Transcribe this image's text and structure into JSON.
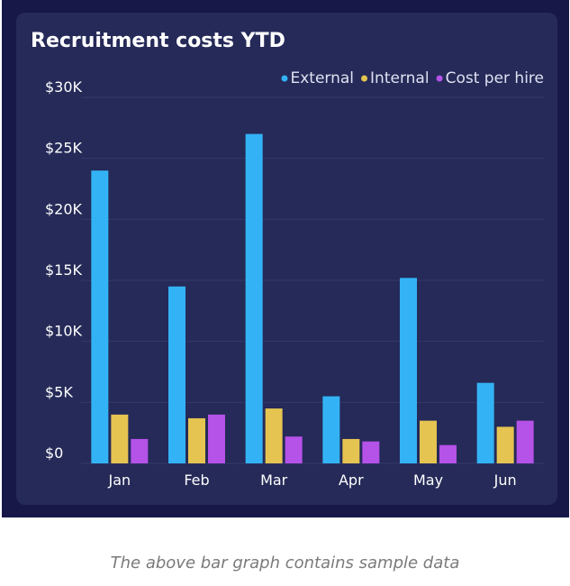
{
  "chart_data": {
    "type": "bar",
    "title": "Recruitment costs YTD",
    "xlabel": "",
    "ylabel": "",
    "categories": [
      "Jan",
      "Feb",
      "Mar",
      "Apr",
      "May",
      "Jun"
    ],
    "series": [
      {
        "name": "External",
        "color": "#33b3f5",
        "values": [
          24000,
          14500,
          27000,
          5500,
          15200,
          6600
        ]
      },
      {
        "name": "Internal",
        "color": "#e5c451",
        "values": [
          4000,
          3700,
          4500,
          2000,
          3500,
          3000
        ]
      },
      {
        "name": "Cost per hire",
        "color": "#b552e8",
        "values": [
          2000,
          4000,
          2200,
          1800,
          1500,
          3500
        ]
      }
    ],
    "ylim": [
      0,
      30000
    ],
    "yticks": [
      0,
      5000,
      10000,
      15000,
      20000,
      25000,
      30000
    ],
    "ytick_labels": [
      "$0",
      "$5K",
      "$10K",
      "$15K",
      "$20K",
      "$25K",
      "$30K"
    ],
    "grid": true,
    "legend_position": "top-right",
    "colors": {
      "outer_background": "#181848",
      "card_background": "#252a58",
      "text": "#ffffff"
    }
  },
  "caption": "The above bar graph contains sample data"
}
